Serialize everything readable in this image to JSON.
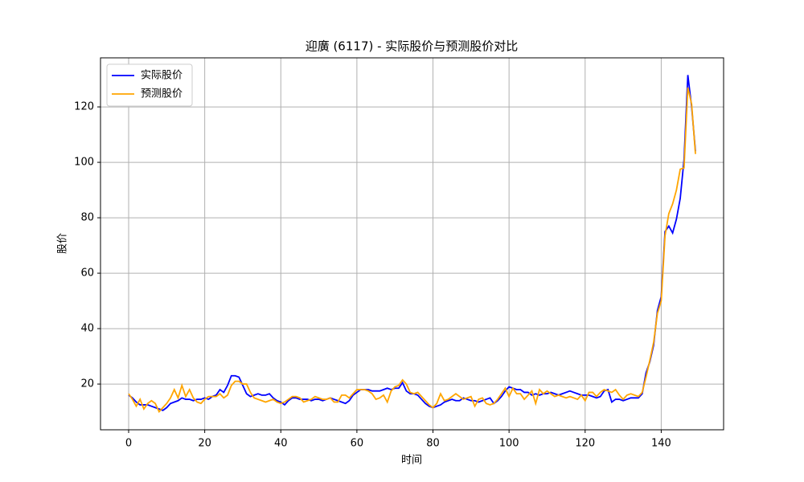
{
  "chart_data": {
    "type": "line",
    "title": "迎廣 (6117) - 实际股价与预测股价对比",
    "x_label": "时间",
    "y_label": "股价",
    "x": [
      0,
      1,
      2,
      3,
      4,
      5,
      6,
      7,
      8,
      9,
      10,
      11,
      12,
      13,
      14,
      15,
      16,
      17,
      18,
      19,
      20,
      21,
      22,
      23,
      24,
      25,
      26,
      27,
      28,
      29,
      30,
      31,
      32,
      33,
      34,
      35,
      36,
      37,
      38,
      39,
      40,
      41,
      42,
      43,
      44,
      45,
      46,
      47,
      48,
      49,
      50,
      51,
      52,
      53,
      54,
      55,
      56,
      57,
      58,
      59,
      60,
      61,
      62,
      63,
      64,
      65,
      66,
      67,
      68,
      69,
      70,
      71,
      72,
      73,
      74,
      75,
      76,
      77,
      78,
      79,
      80,
      81,
      82,
      83,
      84,
      85,
      86,
      87,
      88,
      89,
      90,
      91,
      92,
      93,
      94,
      95,
      96,
      97,
      98,
      99,
      100,
      101,
      102,
      103,
      104,
      105,
      106,
      107,
      108,
      109,
      110,
      111,
      112,
      113,
      114,
      115,
      116,
      117,
      118,
      119,
      120,
      121,
      122,
      123,
      124,
      125,
      126,
      127,
      128,
      129,
      130,
      131,
      132,
      133,
      134,
      135,
      136,
      137,
      138,
      139,
      140,
      141,
      142,
      143,
      144,
      145,
      146,
      147,
      148,
      149
    ],
    "series": [
      {
        "name": "实际股价",
        "color": "#0000ff",
        "values": [
          16,
          15,
          13.5,
          12.5,
          12.5,
          12.5,
          12,
          11.5,
          11,
          10.5,
          11.5,
          13,
          13.5,
          14,
          15,
          14.5,
          14.5,
          14,
          14.5,
          14.5,
          15,
          14.5,
          15.5,
          16,
          18,
          17,
          19.5,
          23,
          23,
          22.5,
          19.5,
          16.5,
          15.5,
          16,
          16.5,
          16,
          16,
          16.5,
          15,
          14,
          13.5,
          12.5,
          14,
          15,
          15,
          14.5,
          14.5,
          14.5,
          14,
          14.5,
          14.5,
          14,
          14.5,
          15,
          14.5,
          14,
          13.5,
          13,
          14,
          16,
          17,
          18,
          18,
          18,
          17.5,
          17.5,
          17.5,
          18,
          18.5,
          18,
          18.5,
          18.5,
          20.5,
          17.5,
          16.5,
          16.5,
          16,
          14.5,
          13,
          12,
          11.5,
          12,
          12.5,
          13.5,
          14,
          14.5,
          14,
          14,
          15,
          14.5,
          14,
          14,
          13.5,
          14,
          14.5,
          15,
          13,
          14,
          15.5,
          17.5,
          19,
          18.5,
          18,
          18,
          17,
          17,
          16,
          16.5,
          16,
          16.5,
          16.5,
          17,
          16.5,
          16,
          16.5,
          17,
          17.5,
          17,
          16.5,
          16,
          16,
          16,
          15.5,
          15,
          15.5,
          17.5,
          18,
          13.5,
          14.5,
          14.5,
          14,
          14.5,
          15,
          15,
          15,
          16.5,
          24,
          28,
          34,
          46.5,
          51.5,
          75,
          77,
          74.5,
          79.5,
          87,
          101,
          131.5,
          120,
          104
        ]
      },
      {
        "name": "预测股价",
        "color": "#ffa500",
        "values": [
          16.5,
          14.5,
          12,
          14.5,
          11,
          13,
          14,
          13,
          10,
          11.5,
          13,
          15,
          18,
          15,
          19.5,
          15.5,
          18,
          15,
          13.5,
          13,
          14.5,
          15.5,
          15.5,
          15.5,
          16.5,
          15,
          16,
          19.5,
          21,
          21,
          20,
          20,
          17,
          15,
          14.5,
          14,
          13.5,
          14,
          14.5,
          13.5,
          13,
          13.5,
          14.5,
          15.5,
          15.5,
          15,
          13.5,
          14,
          14.5,
          15.5,
          15,
          14.5,
          14.5,
          15,
          13.5,
          13.5,
          16,
          16,
          15,
          16.5,
          18,
          18,
          18,
          17.5,
          16.5,
          14.5,
          15,
          16,
          13.5,
          17.5,
          19,
          19.5,
          21.5,
          20,
          17,
          16.5,
          17,
          15.5,
          14,
          12.5,
          11.5,
          13,
          16.5,
          14,
          14.5,
          15.5,
          16.5,
          15.5,
          14.5,
          15,
          15.5,
          12,
          14.5,
          15,
          13,
          12.5,
          13,
          14.5,
          16.5,
          18.5,
          15.5,
          18.5,
          16.5,
          16.5,
          14.5,
          16,
          17.5,
          13,
          18,
          16.5,
          17.5,
          16.5,
          15.5,
          16,
          15.5,
          15,
          15.5,
          15,
          14.5,
          16,
          14,
          17,
          17,
          15.5,
          17,
          18,
          17.5,
          17,
          18,
          16,
          14.5,
          16,
          16.5,
          16,
          15.5,
          17,
          22.5,
          28.5,
          35,
          45.5,
          50,
          73.5,
          81.5,
          85,
          90,
          97.5,
          98,
          127,
          121,
          103
        ]
      }
    ],
    "xlim": [
      -7.4,
      156.4
    ],
    "ylim": [
      3.5,
      137.7
    ],
    "xticks": [
      0,
      20,
      40,
      60,
      80,
      100,
      120,
      140
    ],
    "yticks": [
      20,
      40,
      60,
      80,
      100,
      120
    ],
    "grid": true,
    "legend": "upper left"
  }
}
